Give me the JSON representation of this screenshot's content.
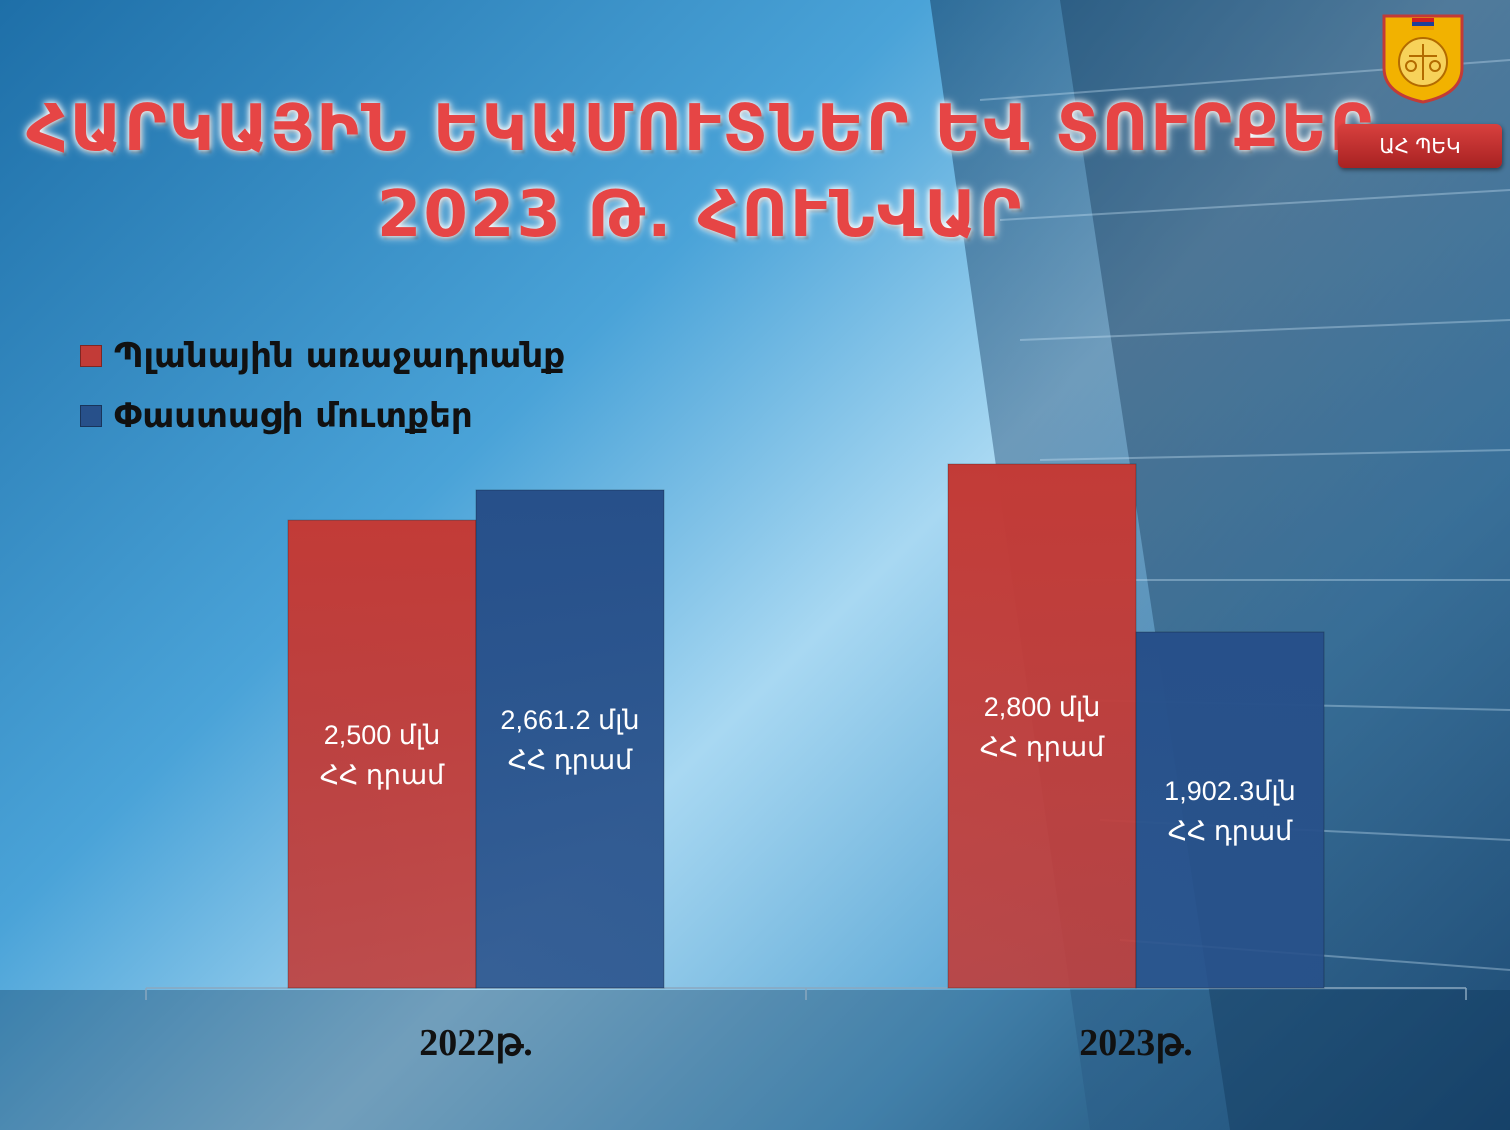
{
  "title": {
    "line1": "ՀԱՐԿԱՅԻՆ ԵԿԱՄՈՒՏՆԵՐ ԵՎ ՏՈՒՐՔԵՐ",
    "line2": "2023 Թ. ՀՈՒՆՎԱՐ"
  },
  "badge": {
    "label": "ԱՀ ՊԵԿ"
  },
  "colors": {
    "plan": "#c23b37",
    "actual": "#27508a"
  },
  "chart_data": {
    "type": "bar",
    "categories": [
      "2022թ.",
      "2023թ."
    ],
    "series": [
      {
        "name": "Պլանային առաջադրանք",
        "values": [
          2500,
          2800
        ],
        "labels": [
          "2,500 մլն",
          "2,800 մլն"
        ],
        "color": "#c23b37"
      },
      {
        "name": "Փաստացի մուտքեր",
        "values": [
          2661.2,
          1902.3
        ],
        "labels": [
          "2,661.2 մլն",
          "1,902.3մլն"
        ],
        "color": "#27508a"
      }
    ],
    "unit_label": "ՀՀ դրամ",
    "ylim": [
      0,
      2800
    ],
    "legend": "top-left",
    "grid": false
  }
}
